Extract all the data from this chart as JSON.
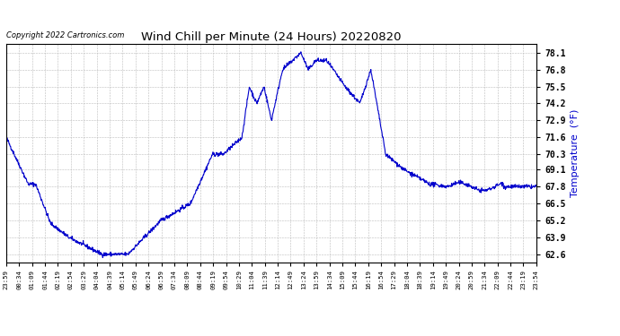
{
  "title": "Wind Chill per Minute (24 Hours) 20220820",
  "ylabel": "Temperature  (°F)",
  "copyright": "Copyright 2022 Cartronics.com",
  "line_color": "#0000cc",
  "background_color": "#ffffff",
  "yticks": [
    62.6,
    63.9,
    65.2,
    66.5,
    67.8,
    69.1,
    70.3,
    71.6,
    72.9,
    74.2,
    75.5,
    76.8,
    78.1
  ],
  "ylim": [
    62.0,
    78.8
  ],
  "xtick_labels": [
    "23:59",
    "00:34",
    "01:09",
    "01:44",
    "02:19",
    "02:54",
    "03:29",
    "04:04",
    "04:39",
    "05:14",
    "05:49",
    "06:24",
    "06:59",
    "07:34",
    "08:09",
    "08:44",
    "09:19",
    "09:54",
    "10:29",
    "11:04",
    "11:39",
    "12:14",
    "12:49",
    "13:24",
    "13:59",
    "14:34",
    "15:09",
    "15:44",
    "16:19",
    "16:54",
    "17:29",
    "18:04",
    "18:39",
    "19:14",
    "19:49",
    "20:24",
    "20:59",
    "21:34",
    "22:09",
    "22:44",
    "23:19",
    "23:54"
  ]
}
